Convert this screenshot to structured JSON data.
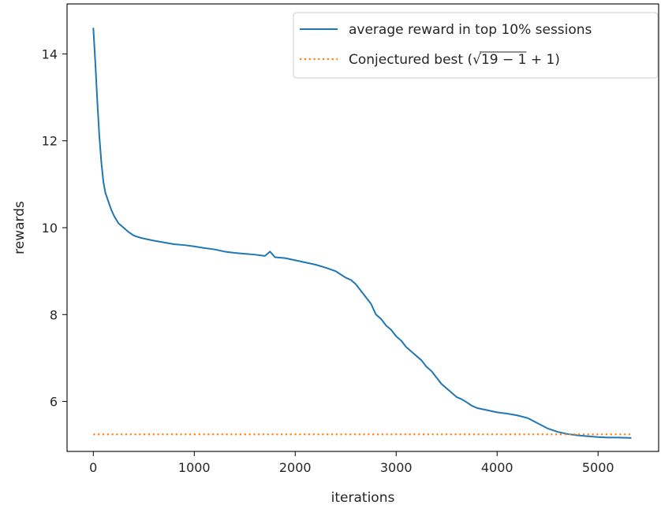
{
  "chart_data": {
    "type": "line",
    "xlabel": "iterations",
    "ylabel": "rewards",
    "xlim": [
      -260,
      5600
    ],
    "ylim": [
      4.85,
      15.15
    ],
    "xticks": [
      0,
      1000,
      2000,
      3000,
      4000,
      5000
    ],
    "yticks": [
      6,
      8,
      10,
      12,
      14
    ],
    "grid": false,
    "legend_position": "top-right",
    "series": [
      {
        "name": "average reward in top 10% sessions",
        "style": "solid",
        "color": "#1f77b4",
        "x": [
          0,
          20,
          40,
          60,
          80,
          100,
          120,
          150,
          180,
          210,
          250,
          300,
          350,
          400,
          450,
          500,
          600,
          700,
          800,
          900,
          1000,
          1100,
          1200,
          1300,
          1400,
          1500,
          1600,
          1700,
          1750,
          1800,
          1900,
          2000,
          2100,
          2200,
          2300,
          2400,
          2500,
          2550,
          2600,
          2650,
          2700,
          2750,
          2800,
          2850,
          2900,
          2950,
          3000,
          3050,
          3100,
          3150,
          3200,
          3250,
          3300,
          3350,
          3400,
          3450,
          3500,
          3550,
          3600,
          3650,
          3700,
          3750,
          3800,
          3900,
          4000,
          4100,
          4200,
          4300,
          4400,
          4500,
          4600,
          4700,
          4800,
          4900,
          5000,
          5100,
          5200,
          5330
        ],
        "y": [
          14.6,
          13.8,
          12.9,
          12.1,
          11.5,
          11.05,
          10.8,
          10.6,
          10.4,
          10.25,
          10.1,
          10.0,
          9.9,
          9.82,
          9.78,
          9.75,
          9.7,
          9.66,
          9.62,
          9.6,
          9.57,
          9.53,
          9.5,
          9.45,
          9.42,
          9.4,
          9.38,
          9.35,
          9.45,
          9.32,
          9.3,
          9.25,
          9.2,
          9.15,
          9.08,
          9.0,
          8.85,
          8.8,
          8.7,
          8.55,
          8.4,
          8.25,
          8.0,
          7.9,
          7.75,
          7.65,
          7.5,
          7.4,
          7.25,
          7.15,
          7.05,
          6.95,
          6.8,
          6.7,
          6.55,
          6.4,
          6.3,
          6.2,
          6.1,
          6.05,
          5.98,
          5.9,
          5.85,
          5.8,
          5.75,
          5.72,
          5.68,
          5.62,
          5.5,
          5.38,
          5.3,
          5.25,
          5.22,
          5.2,
          5.18,
          5.17,
          5.17,
          5.16
        ]
      },
      {
        "name": "Conjectured best ($\\sqrt{19-1}+1$)",
        "style": "dotted",
        "color": "#ff7f0e",
        "x": [
          0,
          5330
        ],
        "y": [
          5.243,
          5.243
        ]
      }
    ]
  }
}
